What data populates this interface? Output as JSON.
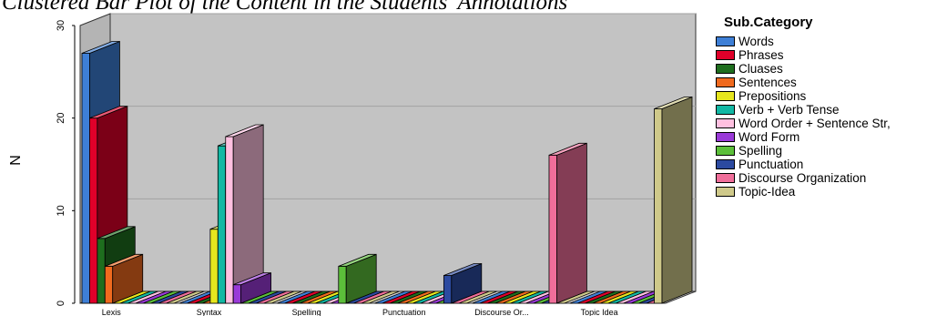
{
  "chart_data": {
    "type": "bar",
    "title": "Clustered Bar Plot of the Content in the Students' Annotations",
    "ylabel": "N",
    "xlabel": "",
    "ylim": [
      0,
      30
    ],
    "yticks": [
      0,
      10,
      20,
      30
    ],
    "grid": true,
    "three_d": true,
    "legend_title": "Sub.Category",
    "legend_position": "right",
    "categories": [
      "Lexis",
      "Syntax",
      "Spelling",
      "Punctuation",
      "Discourse Or...",
      "Topic Idea"
    ],
    "series": [
      {
        "name": "Words",
        "color": "#3E7FD6",
        "values": [
          27,
          0,
          0,
          0,
          0,
          0
        ]
      },
      {
        "name": "Phrases",
        "color": "#E0002A",
        "values": [
          20,
          0,
          0,
          0,
          0,
          0
        ]
      },
      {
        "name": "Cluases",
        "color": "#1E6E1E",
        "values": [
          7,
          0,
          0,
          0,
          0,
          0
        ]
      },
      {
        "name": "Sentences",
        "color": "#F06A1E",
        "values": [
          4,
          0,
          0,
          0,
          0,
          0
        ]
      },
      {
        "name": "Prepositions",
        "color": "#E6E61E",
        "values": [
          0,
          8,
          0,
          0,
          0,
          0
        ]
      },
      {
        "name": "Verb + Verb Tense",
        "color": "#12B8A4",
        "values": [
          0,
          17,
          0,
          0,
          0,
          0
        ]
      },
      {
        "name": "Word Order + Sentence Str,",
        "color": "#FFC0E0",
        "values": [
          0,
          18,
          0,
          0,
          0,
          0
        ]
      },
      {
        "name": "Word Form",
        "color": "#9A3AD8",
        "values": [
          0,
          2,
          0,
          0,
          0,
          0
        ]
      },
      {
        "name": "Spelling",
        "color": "#5CBF3A",
        "values": [
          0,
          0,
          4,
          0,
          0,
          0
        ]
      },
      {
        "name": "Punctuation",
        "color": "#2C4AA0",
        "values": [
          0,
          0,
          0,
          3,
          0,
          0
        ]
      },
      {
        "name": "Discourse Organization",
        "color": "#F06E9A",
        "values": [
          0,
          0,
          0,
          0,
          16,
          0
        ]
      },
      {
        "name": "Topic-Idea",
        "color": "#CFC98A",
        "values": [
          0,
          0,
          0,
          0,
          0,
          21
        ]
      }
    ]
  }
}
